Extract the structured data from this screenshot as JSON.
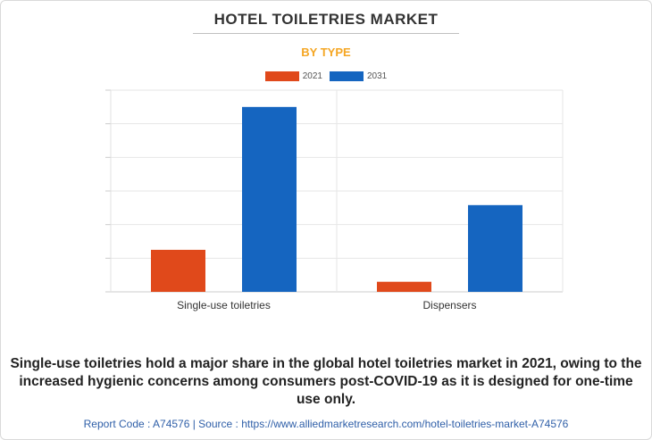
{
  "header": {
    "title": "HOTEL TOILETRIES MARKET",
    "subtitle": "BY TYPE"
  },
  "caption": "Single-use toiletries hold a major share in the global hotel toiletries market in 2021, owing to the increased hygienic concerns among consumers post-COVID-19 as it is designed for one-time use only.",
  "footer": {
    "text": "Report Code : A74576  |  Source : https://www.alliedmarketresearch.com/hotel-toiletries-market-A74576"
  },
  "chart_data": {
    "type": "bar",
    "categories": [
      "Single-use toiletries",
      "Dispensers"
    ],
    "series": [
      {
        "name": "2021",
        "color": "#e0491b",
        "values": [
          1.25,
          0.3
        ]
      },
      {
        "name": "2031",
        "color": "#1565c0",
        "values": [
          5.5,
          2.58
        ]
      }
    ],
    "ylim": [
      0,
      6
    ],
    "ygrid": [
      0,
      1,
      2,
      3,
      4,
      5,
      6
    ],
    "grid": true,
    "legend": "top-center",
    "xlabel": "",
    "ylabel": ""
  }
}
